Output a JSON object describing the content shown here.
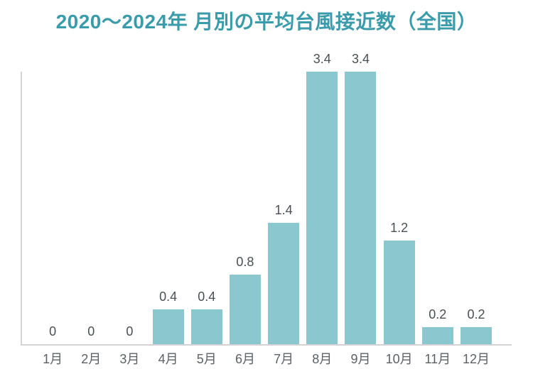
{
  "title": "2020〜2024年 月別の平均台風接近数（全国）",
  "colors": {
    "bar": "#8bc7cf",
    "title": "#3a9baa",
    "axis": "#d3d3d3",
    "value_label": "#4b4f54",
    "month_label": "#5d6166",
    "background": "#ffffff"
  },
  "chart_data": {
    "type": "bar",
    "title": "2020〜2024年 月別の平均台風接近数（全国）",
    "categories": [
      "1月",
      "2月",
      "3月",
      "4月",
      "5月",
      "6月",
      "7月",
      "8月",
      "9月",
      "10月",
      "11月",
      "12月"
    ],
    "values": [
      0,
      0,
      0,
      0.4,
      0.4,
      0.8,
      1.4,
      3.4,
      3.4,
      1.2,
      0.2,
      0.2
    ],
    "value_labels": [
      "0",
      "0",
      "0",
      "0.4",
      "0.4",
      "0.8",
      "1.4",
      "3.4",
      "3.4",
      "1.2",
      "0.2",
      "0.2"
    ],
    "xlabel": "",
    "ylabel": "",
    "ylim": [
      0,
      3.4
    ],
    "grid": false,
    "legend": false
  }
}
